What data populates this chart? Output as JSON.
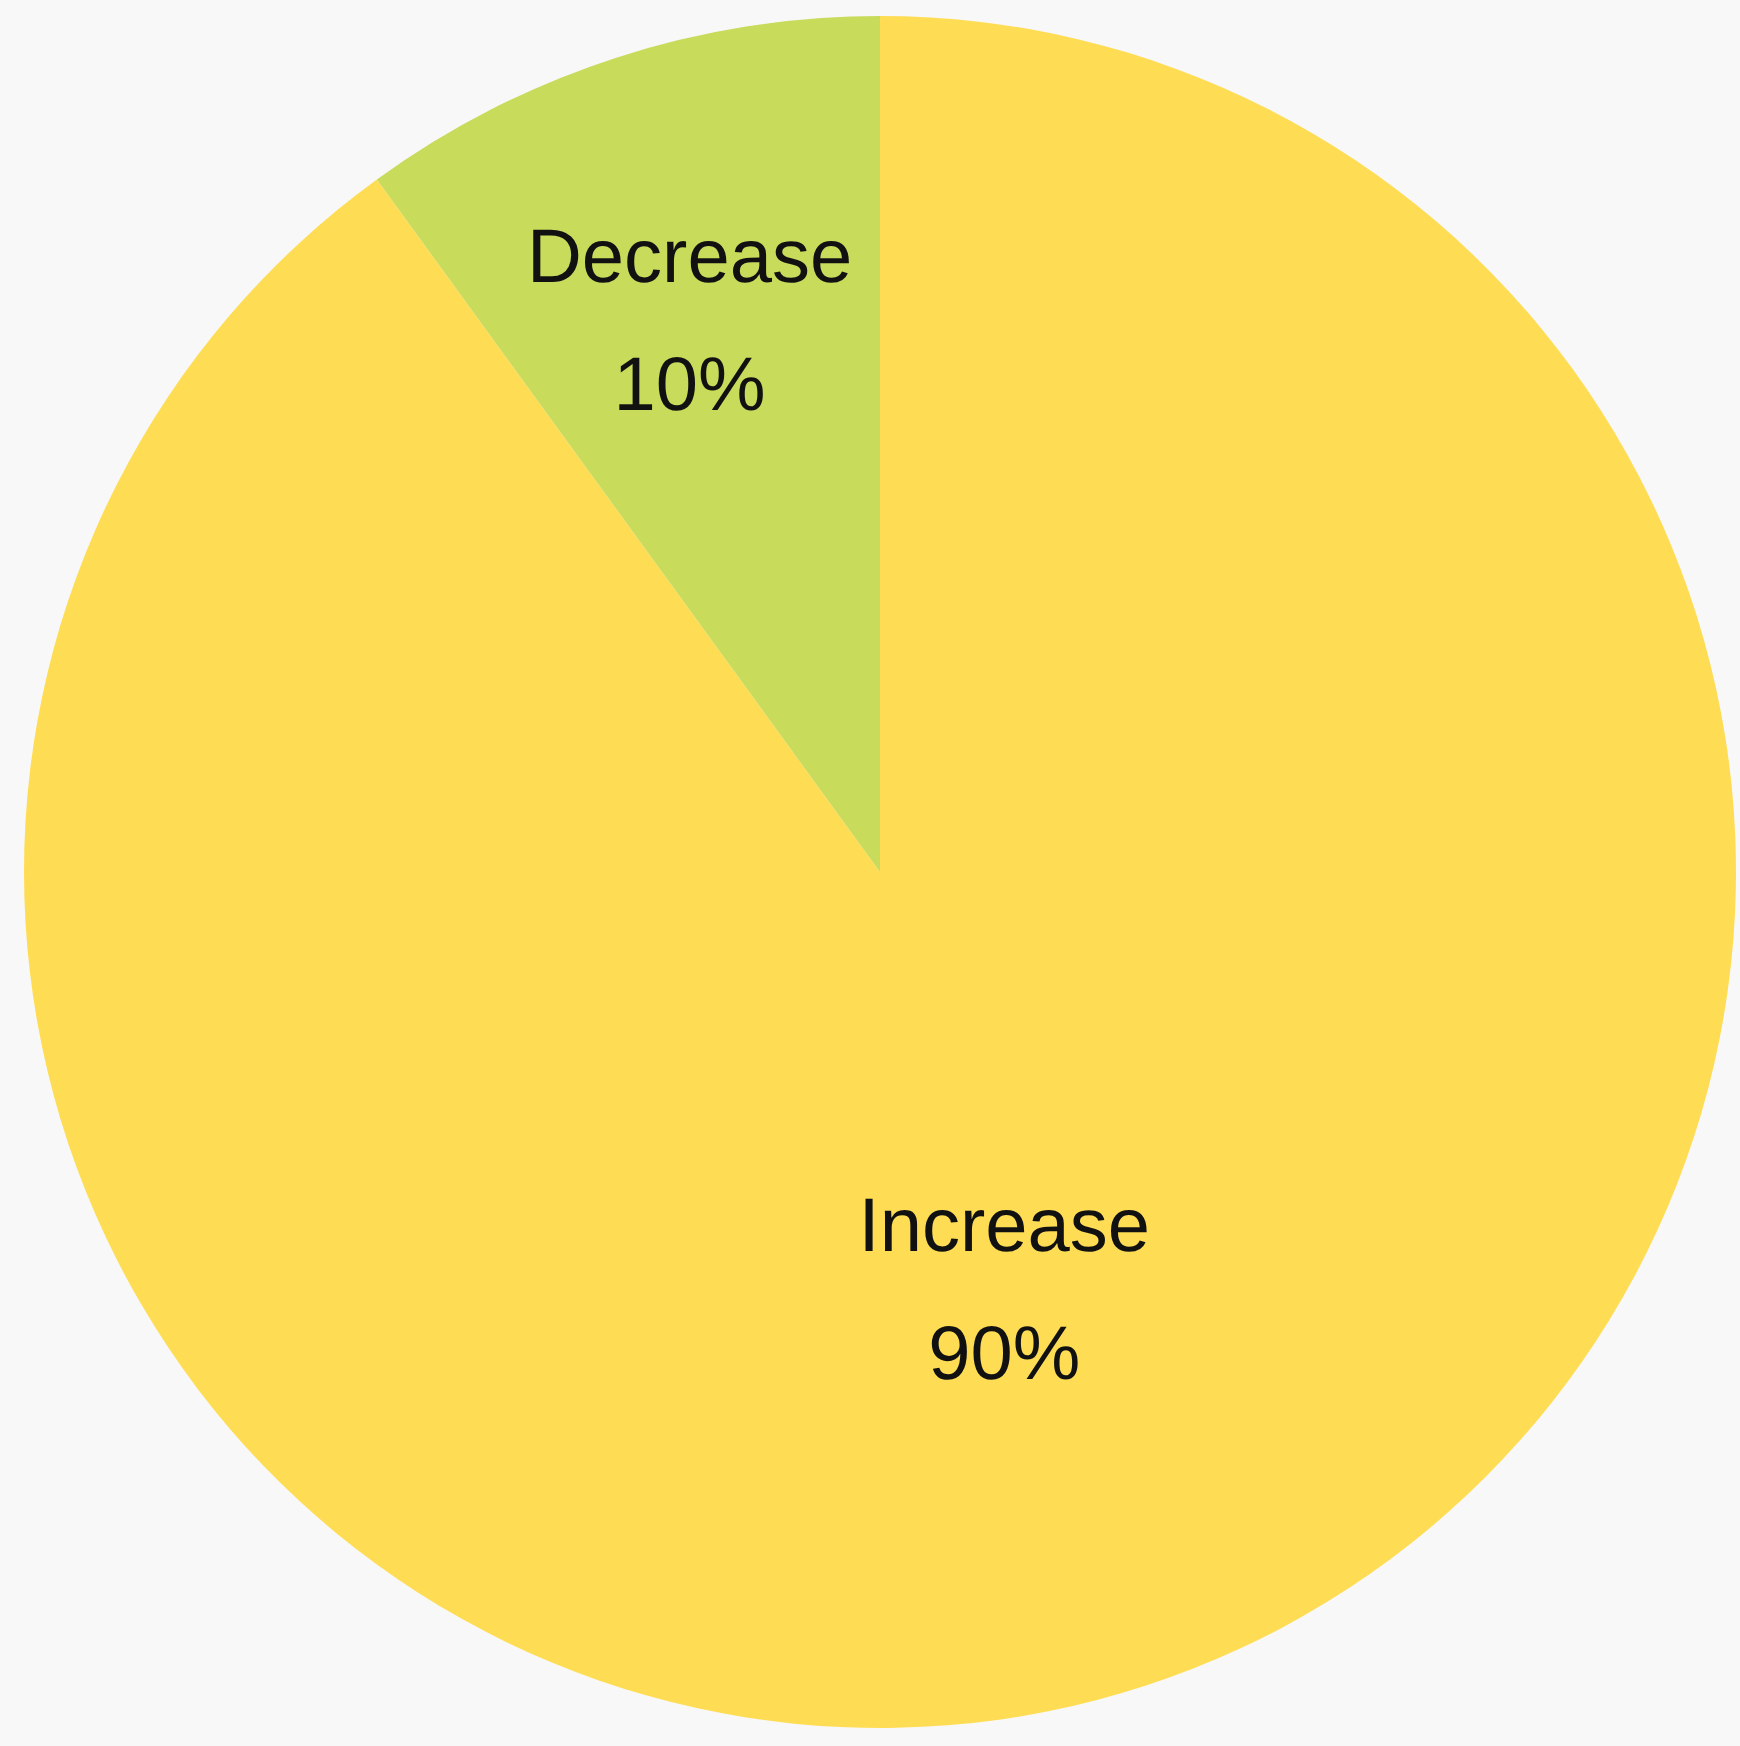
{
  "chart_data": {
    "type": "pie",
    "categories": [
      "Increase",
      "Decrease"
    ],
    "values": [
      90,
      10
    ],
    "colors": [
      "#fedd55",
      "#c8db5a"
    ],
    "value_labels": [
      "90%",
      "10%"
    ],
    "legend": false
  }
}
